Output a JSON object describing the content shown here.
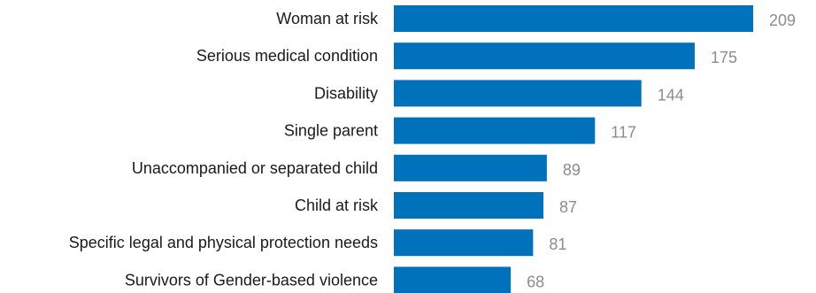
{
  "chart_data": {
    "type": "bar",
    "orientation": "horizontal",
    "categories": [
      "Woman at risk",
      "Serious medical condition",
      "Disability",
      "Single parent",
      "Unaccompanied or separated child",
      "Child at risk",
      "Specific legal and physical protection needs",
      "Survivors of Gender-based violence"
    ],
    "values": [
      209,
      175,
      144,
      117,
      89,
      87,
      81,
      68
    ],
    "title": "",
    "xlabel": "",
    "ylabel": "",
    "xlim": [
      0,
      209
    ],
    "grid": false,
    "data_labels": true,
    "bar_color": "#0072BC",
    "value_label_color": "#8c8c8c",
    "category_label_color": "#1a1a1a"
  }
}
